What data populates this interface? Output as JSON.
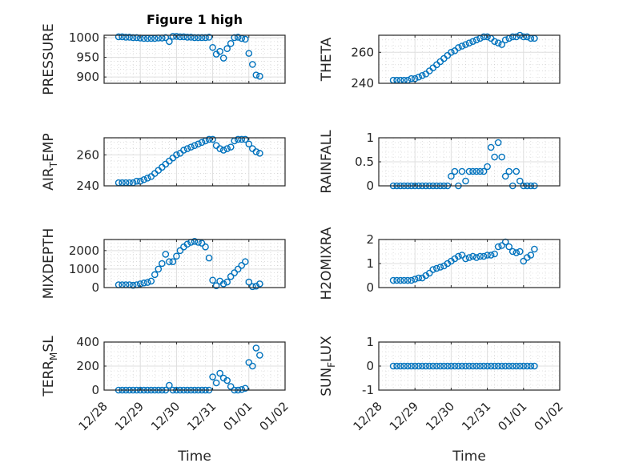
{
  "chart_data": [
    {
      "type": "scatter",
      "title": "Figure 1 high",
      "ylabel": "PRESSURE",
      "xlabel": "",
      "ylim": [
        884,
        1006
      ],
      "yticks": [
        900,
        950,
        1000
      ],
      "x": [
        0.4,
        0.5,
        0.6,
        0.7,
        0.8,
        0.9,
        1.0,
        1.1,
        1.2,
        1.3,
        1.4,
        1.5,
        1.6,
        1.7,
        1.8,
        1.9,
        2.0,
        2.1,
        2.2,
        2.3,
        2.4,
        2.5,
        2.6,
        2.7,
        2.8,
        2.9,
        3.0,
        3.1,
        3.2,
        3.3,
        3.4,
        3.5,
        3.6,
        3.7,
        3.8,
        3.9,
        4.0,
        4.1,
        4.2,
        4.3
      ],
      "y": [
        1002,
        1002,
        1001,
        1001,
        1000,
        1000,
        999,
        998,
        998,
        998,
        998,
        999,
        999,
        1000,
        990,
        1003,
        1003,
        1002,
        1002,
        1001,
        1001,
        1000,
        1000,
        1000,
        1000,
        1001,
        975,
        958,
        965,
        948,
        972,
        985,
        1000,
        1001,
        998,
        996,
        960,
        932,
        905,
        902
      ]
    },
    {
      "type": "scatter",
      "title": "",
      "ylabel": "THETA",
      "xlabel": "",
      "ylim": [
        240,
        271
      ],
      "yticks": [
        240,
        260
      ],
      "x": [
        0.4,
        0.5,
        0.6,
        0.7,
        0.8,
        0.9,
        1.0,
        1.1,
        1.2,
        1.3,
        1.4,
        1.5,
        1.6,
        1.7,
        1.8,
        1.9,
        2.0,
        2.1,
        2.2,
        2.3,
        2.4,
        2.5,
        2.6,
        2.7,
        2.8,
        2.9,
        3.0,
        3.1,
        3.2,
        3.3,
        3.4,
        3.5,
        3.6,
        3.7,
        3.8,
        3.9,
        4.0,
        4.1,
        4.2,
        4.3
      ],
      "y": [
        242,
        242,
        242,
        242,
        242,
        243,
        243,
        244,
        245,
        246,
        248,
        250,
        252,
        254,
        256,
        258,
        260,
        261,
        263,
        264,
        265,
        266,
        267,
        268,
        269,
        270,
        270,
        269,
        267,
        266,
        265,
        268,
        269,
        270,
        270,
        271,
        270,
        270,
        269,
        269
      ]
    },
    {
      "type": "scatter",
      "title": "",
      "ylabel": "AIR_TEMP",
      "xlabel": "",
      "ylim": [
        240,
        271
      ],
      "yticks": [
        240,
        260
      ],
      "x": [
        0.4,
        0.5,
        0.6,
        0.7,
        0.8,
        0.9,
        1.0,
        1.1,
        1.2,
        1.3,
        1.4,
        1.5,
        1.6,
        1.7,
        1.8,
        1.9,
        2.0,
        2.1,
        2.2,
        2.3,
        2.4,
        2.5,
        2.6,
        2.7,
        2.8,
        2.9,
        3.0,
        3.1,
        3.2,
        3.3,
        3.4,
        3.5,
        3.6,
        3.7,
        3.8,
        3.9,
        4.0,
        4.1,
        4.2,
        4.3
      ],
      "y": [
        242,
        242,
        242,
        242,
        242,
        243,
        243,
        244,
        245,
        246,
        248,
        250,
        252,
        254,
        256,
        258,
        260,
        261,
        263,
        264,
        265,
        266,
        267,
        268,
        269,
        270,
        270,
        266,
        264,
        263,
        264,
        265,
        269,
        270,
        270,
        270,
        267,
        264,
        262,
        261
      ]
    },
    {
      "type": "scatter",
      "title": "",
      "ylabel": "RAINFALL",
      "xlabel": "",
      "ylim": [
        0,
        1
      ],
      "yticks": [
        0,
        0.5,
        1
      ],
      "x": [
        0.4,
        0.5,
        0.6,
        0.7,
        0.8,
        0.9,
        1.0,
        1.1,
        1.2,
        1.3,
        1.4,
        1.5,
        1.6,
        1.7,
        1.8,
        1.9,
        2.0,
        2.1,
        2.2,
        2.3,
        2.4,
        2.5,
        2.6,
        2.7,
        2.8,
        2.9,
        3.0,
        3.1,
        3.2,
        3.3,
        3.4,
        3.5,
        3.6,
        3.7,
        3.8,
        3.9,
        4.0,
        4.1,
        4.2,
        4.3
      ],
      "y": [
        0,
        0,
        0,
        0,
        0,
        0,
        0,
        0,
        0,
        0,
        0,
        0,
        0,
        0,
        0,
        0,
        0.2,
        0.3,
        0,
        0.3,
        0.1,
        0.3,
        0.3,
        0.3,
        0.3,
        0.3,
        0.4,
        0.8,
        0.6,
        0.9,
        0.6,
        0.2,
        0.3,
        0,
        0.3,
        0.1,
        0,
        0,
        0,
        0
      ]
    },
    {
      "type": "scatter",
      "title": "",
      "ylabel": "MIXDEPTH",
      "xlabel": "",
      "ylim": [
        0,
        2600
      ],
      "yticks": [
        0,
        1000,
        2000
      ],
      "x": [
        0.4,
        0.5,
        0.6,
        0.7,
        0.8,
        0.9,
        1.0,
        1.1,
        1.2,
        1.3,
        1.4,
        1.5,
        1.6,
        1.7,
        1.8,
        1.9,
        2.0,
        2.1,
        2.2,
        2.3,
        2.4,
        2.5,
        2.6,
        2.7,
        2.8,
        2.9,
        3.0,
        3.1,
        3.2,
        3.3,
        3.4,
        3.5,
        3.6,
        3.7,
        3.8,
        3.9,
        4.0,
        4.1,
        4.2,
        4.3
      ],
      "y": [
        150,
        150,
        150,
        150,
        120,
        150,
        200,
        250,
        280,
        350,
        700,
        1000,
        1300,
        1800,
        1400,
        1400,
        1700,
        2000,
        2200,
        2350,
        2450,
        2500,
        2450,
        2400,
        2200,
        1600,
        400,
        100,
        350,
        200,
        300,
        600,
        800,
        1000,
        1200,
        1400,
        300,
        50,
        80,
        200
      ]
    },
    {
      "type": "scatter",
      "title": "",
      "ylabel": "H2OMIXRA",
      "xlabel": "",
      "ylim": [
        0,
        2
      ],
      "yticks": [
        0,
        1,
        2
      ],
      "x": [
        0.4,
        0.5,
        0.6,
        0.7,
        0.8,
        0.9,
        1.0,
        1.1,
        1.2,
        1.3,
        1.4,
        1.5,
        1.6,
        1.7,
        1.8,
        1.9,
        2.0,
        2.1,
        2.2,
        2.3,
        2.4,
        2.5,
        2.6,
        2.7,
        2.8,
        2.9,
        3.0,
        3.1,
        3.2,
        3.3,
        3.4,
        3.5,
        3.6,
        3.7,
        3.8,
        3.9,
        4.0,
        4.1,
        4.2,
        4.3
      ],
      "y": [
        0.3,
        0.3,
        0.3,
        0.3,
        0.3,
        0.3,
        0.35,
        0.4,
        0.4,
        0.5,
        0.6,
        0.75,
        0.8,
        0.85,
        0.9,
        1.0,
        1.1,
        1.2,
        1.3,
        1.35,
        1.2,
        1.25,
        1.3,
        1.25,
        1.3,
        1.3,
        1.35,
        1.35,
        1.4,
        1.7,
        1.75,
        1.9,
        1.7,
        1.5,
        1.45,
        1.5,
        1.1,
        1.25,
        1.35,
        1.6
      ]
    },
    {
      "type": "scatter",
      "title": "",
      "ylabel": "TERR_MSL",
      "xlabel": "Time",
      "ylim": [
        0,
        400
      ],
      "yticks": [
        0,
        200,
        400
      ],
      "x": [
        0.4,
        0.5,
        0.6,
        0.7,
        0.8,
        0.9,
        1.0,
        1.1,
        1.2,
        1.3,
        1.4,
        1.5,
        1.6,
        1.7,
        1.8,
        1.9,
        2.0,
        2.1,
        2.2,
        2.3,
        2.4,
        2.5,
        2.6,
        2.7,
        2.8,
        2.9,
        3.0,
        3.1,
        3.2,
        3.3,
        3.4,
        3.5,
        3.6,
        3.7,
        3.8,
        3.9,
        4.0,
        4.1,
        4.2,
        4.3
      ],
      "y": [
        0,
        0,
        0,
        0,
        0,
        0,
        0,
        0,
        0,
        0,
        0,
        0,
        0,
        0,
        40,
        0,
        0,
        0,
        0,
        0,
        0,
        0,
        0,
        0,
        0,
        0,
        110,
        60,
        140,
        100,
        80,
        30,
        0,
        0,
        5,
        15,
        230,
        200,
        350,
        290
      ]
    },
    {
      "type": "scatter",
      "title": "",
      "ylabel": "SUN_FLUX",
      "xlabel": "Time",
      "ylim": [
        -1,
        1
      ],
      "yticks": [
        -1,
        0,
        1
      ],
      "x": [
        0.4,
        0.5,
        0.6,
        0.7,
        0.8,
        0.9,
        1.0,
        1.1,
        1.2,
        1.3,
        1.4,
        1.5,
        1.6,
        1.7,
        1.8,
        1.9,
        2.0,
        2.1,
        2.2,
        2.3,
        2.4,
        2.5,
        2.6,
        2.7,
        2.8,
        2.9,
        3.0,
        3.1,
        3.2,
        3.3,
        3.4,
        3.5,
        3.6,
        3.7,
        3.8,
        3.9,
        4.0,
        4.1,
        4.2,
        4.3
      ],
      "y": [
        0,
        0,
        0,
        0,
        0,
        0,
        0,
        0,
        0,
        0,
        0,
        0,
        0,
        0,
        0,
        0,
        0,
        0,
        0,
        0,
        0,
        0,
        0,
        0,
        0,
        0,
        0,
        0,
        0,
        0,
        0,
        0,
        0,
        0,
        0,
        0,
        0,
        0,
        0,
        0
      ]
    }
  ],
  "x_axis": {
    "xlim_days_from_12_28": [
      0,
      5
    ],
    "tick_labels": [
      "12/28",
      "12/29",
      "12/30",
      "12/31",
      "01/01",
      "01/02"
    ]
  },
  "colors": {
    "marker": "#0072BD",
    "axes": "#262626",
    "grid": "#dfdfdf"
  }
}
